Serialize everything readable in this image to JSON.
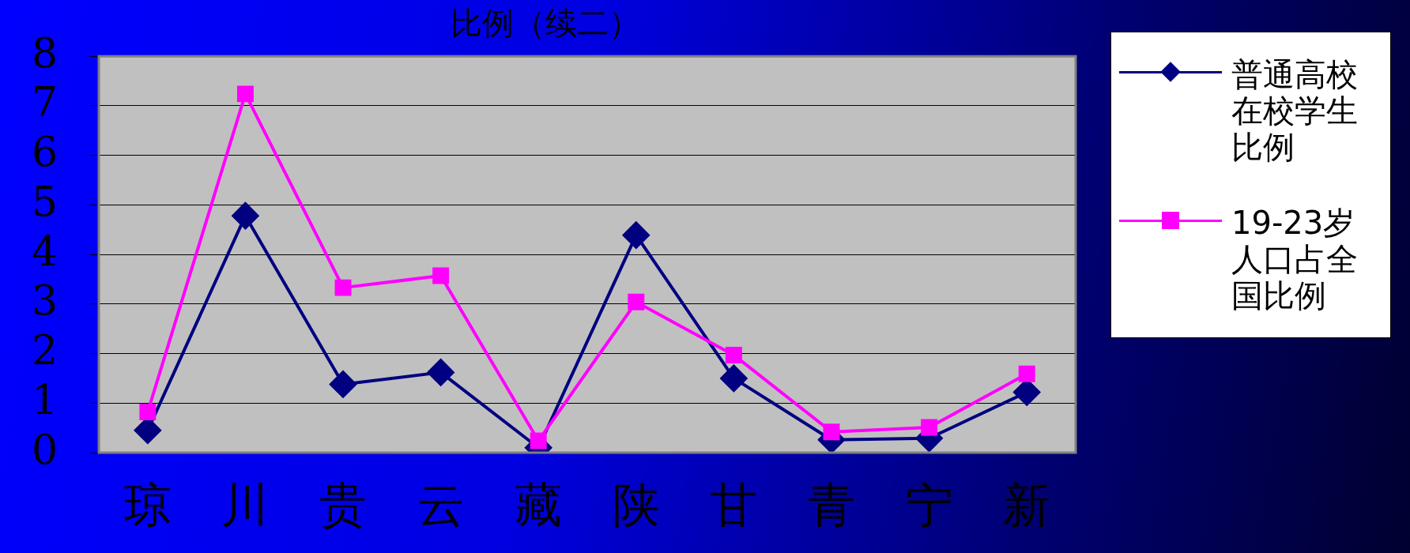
{
  "chart_data": {
    "type": "line",
    "title": "比例（续二）",
    "categories": [
      "琼",
      "川",
      "贵",
      "云",
      "藏",
      "陕",
      "甘",
      "青",
      "宁",
      "新"
    ],
    "series": [
      {
        "name": "普通高校在校学生比例",
        "color": "#000080",
        "marker": "diamond",
        "values": [
          0.45,
          4.78,
          1.38,
          1.62,
          0.1,
          4.39,
          1.5,
          0.26,
          0.29,
          1.22
        ]
      },
      {
        "name": "19-23岁人口占全国比例",
        "color": "#ff00ff",
        "marker": "square",
        "values": [
          0.82,
          7.24,
          3.33,
          3.57,
          0.24,
          3.04,
          1.97,
          0.42,
          0.51,
          1.59
        ]
      }
    ],
    "ylim": [
      0,
      8
    ],
    "yticks": [
      0,
      1,
      2,
      3,
      4,
      5,
      6,
      7,
      8
    ],
    "grid": "y",
    "legend": "right",
    "line_style": "solid"
  }
}
